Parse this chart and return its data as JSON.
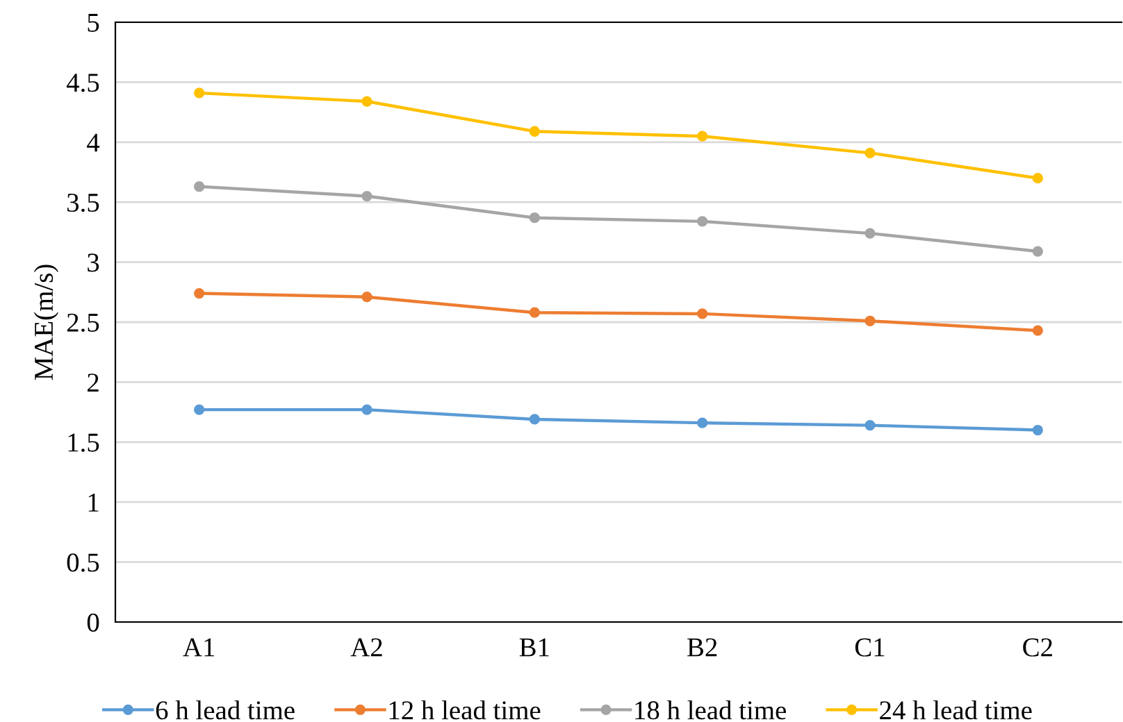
{
  "chart_data": {
    "type": "line",
    "ylabel": "MAE(m/s)",
    "categories": [
      "A1",
      "A2",
      "B1",
      "B2",
      "C1",
      "C2"
    ],
    "series": [
      {
        "name": "6 h lead time",
        "color": "#5b9bd5",
        "values": [
          1.77,
          1.77,
          1.69,
          1.66,
          1.64,
          1.6
        ]
      },
      {
        "name": "12 h lead time",
        "color": "#ed7d31",
        "values": [
          2.74,
          2.71,
          2.58,
          2.57,
          2.51,
          2.43
        ]
      },
      {
        "name": "18 h lead time",
        "color": "#a5a5a5",
        "values": [
          3.63,
          3.55,
          3.37,
          3.34,
          3.24,
          3.09
        ]
      },
      {
        "name": "24 h lead time",
        "color": "#ffc000",
        "values": [
          4.41,
          4.34,
          4.09,
          4.05,
          3.91,
          3.7
        ]
      }
    ],
    "ylim": [
      0,
      5
    ],
    "yticks": [
      0,
      0.5,
      1,
      1.5,
      2,
      2.5,
      3,
      3.5,
      4,
      4.5,
      5
    ],
    "grid": "y",
    "legend": "bottom",
    "marker": "circle",
    "line_style": "solid"
  }
}
